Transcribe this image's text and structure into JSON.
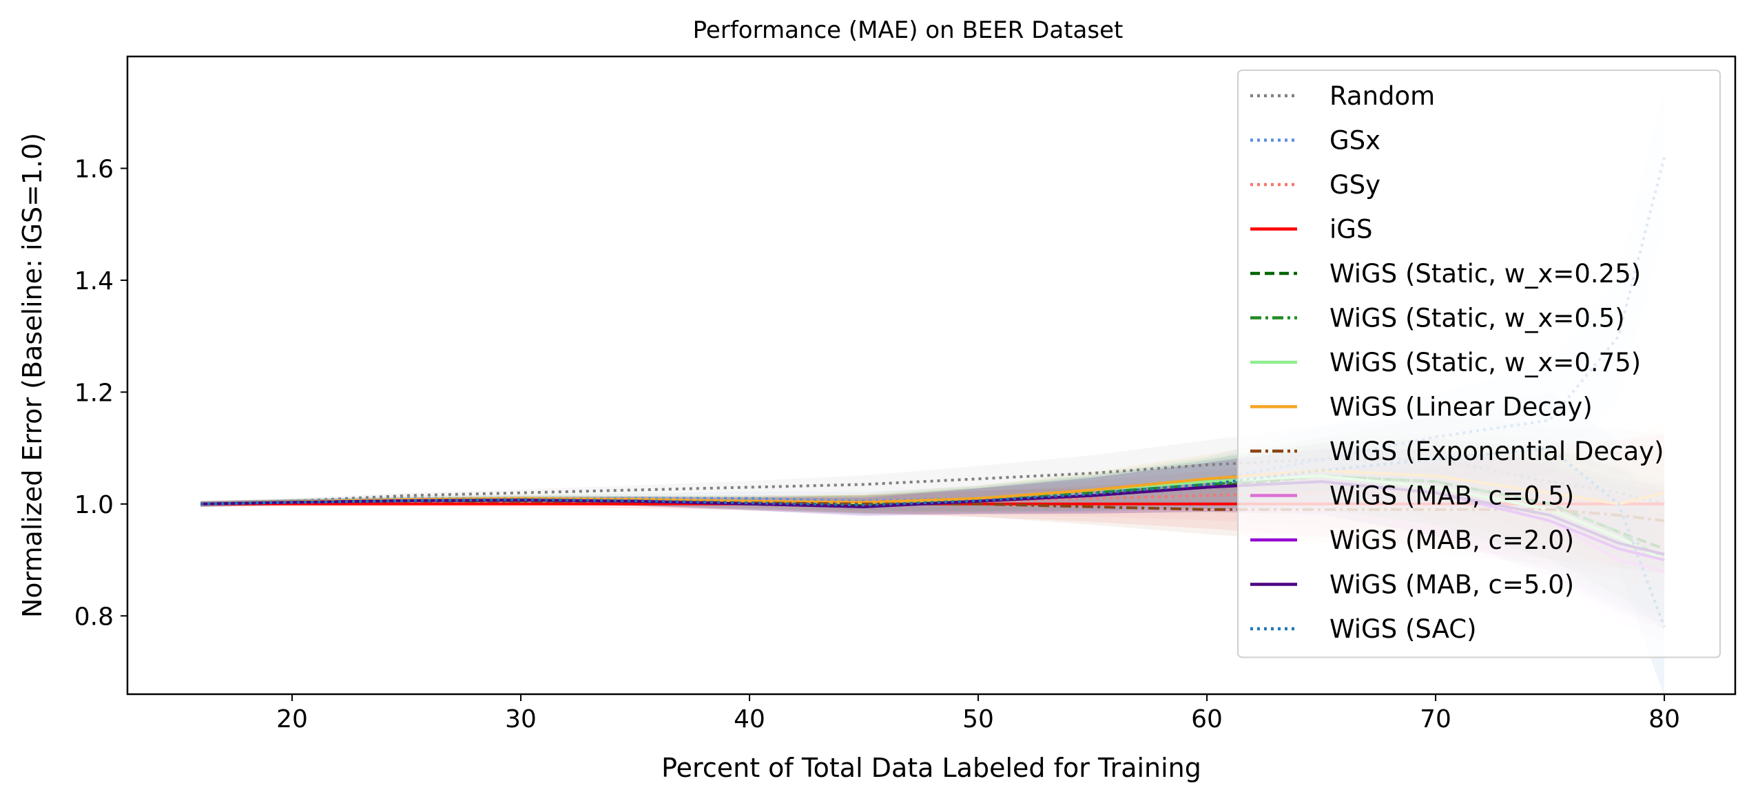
{
  "chart_data": {
    "type": "line",
    "title": "Performance (MAE) on BEER Dataset",
    "xlabel": "Percent of Total Data Labeled for Training",
    "ylabel": "Normalized Error (Baseline: iGS=1.0)",
    "xlim": [
      12.8,
      83.1
    ],
    "ylim": [
      0.66,
      1.8
    ],
    "xticks": [
      "20",
      "30",
      "40",
      "50",
      "60",
      "70",
      "80"
    ],
    "yticks": [
      "0.8",
      "1.0",
      "1.2",
      "1.4",
      "1.6"
    ],
    "grid": false,
    "legend_position": "upper right",
    "x": [
      16,
      20,
      25,
      30,
      35,
      40,
      45,
      50,
      55,
      60,
      65,
      70,
      75,
      78,
      80
    ],
    "series": [
      {
        "name": "Random",
        "color": "#808080",
        "style": "dotted",
        "values": [
          1.0,
          1.005,
          1.015,
          1.02,
          1.025,
          1.03,
          1.035,
          1.045,
          1.055,
          1.07,
          1.08,
          1.08,
          1.04,
          1.02,
          1.0
        ]
      },
      {
        "name": "GSx",
        "color": "#5b8fdc",
        "style": "dotted",
        "values": [
          1.0,
          1.005,
          1.01,
          1.01,
          1.01,
          1.01,
          1.005,
          1.01,
          1.02,
          1.04,
          1.08,
          1.12,
          1.15,
          1.3,
          1.62
        ]
      },
      {
        "name": "GSy",
        "color": "#f4786e",
        "style": "dotted",
        "values": [
          1.0,
          1.003,
          1.005,
          1.005,
          1.005,
          1.005,
          1.0,
          1.005,
          1.01,
          1.015,
          1.02,
          1.02,
          1.01,
          1.0,
          1.0
        ]
      },
      {
        "name": "iGS",
        "color": "#ff0000",
        "style": "solid",
        "values": [
          1.0,
          1.0,
          1.0,
          1.0,
          1.0,
          1.0,
          1.0,
          1.0,
          1.0,
          1.0,
          1.0,
          1.0,
          1.0,
          1.0,
          1.0
        ]
      },
      {
        "name": "WiGS (Static, w_x=0.25)",
        "color": "#006400",
        "style": "dashed",
        "values": [
          1.0,
          1.003,
          1.006,
          1.006,
          1.005,
          1.0,
          0.998,
          1.005,
          1.015,
          1.03,
          1.05,
          1.04,
          1.0,
          0.95,
          0.92
        ]
      },
      {
        "name": "WiGS (Static, w_x=0.5)",
        "color": "#228b22",
        "style": "dashdot",
        "values": [
          1.0,
          1.004,
          1.007,
          1.008,
          1.006,
          1.002,
          1.0,
          1.008,
          1.02,
          1.035,
          1.05,
          1.04,
          1.0,
          0.95,
          0.9
        ]
      },
      {
        "name": "WiGS (Static, w_x=0.75)",
        "color": "#90ee90",
        "style": "solid",
        "values": [
          1.0,
          1.004,
          1.008,
          1.01,
          1.008,
          1.005,
          1.002,
          1.01,
          1.025,
          1.04,
          1.05,
          1.03,
          0.99,
          0.94,
          0.9
        ]
      },
      {
        "name": "WiGS (Linear Decay)",
        "color": "#f5a623",
        "style": "solid",
        "values": [
          1.0,
          1.004,
          1.008,
          1.01,
          1.008,
          1.005,
          1.003,
          1.01,
          1.025,
          1.045,
          1.06,
          1.05,
          1.02,
          1.0,
          1.02
        ]
      },
      {
        "name": "WiGS (Exponential Decay)",
        "color": "#8b4513",
        "style": "dashdot",
        "values": [
          1.0,
          1.003,
          1.005,
          1.005,
          1.004,
          1.002,
          1.0,
          1.0,
          0.995,
          0.99,
          0.99,
          0.99,
          0.99,
          0.98,
          0.97
        ]
      },
      {
        "name": "WiGS (MAB, c=0.5)",
        "color": "#da70d6",
        "style": "solid",
        "values": [
          1.0,
          1.003,
          1.006,
          1.007,
          1.005,
          1.0,
          0.995,
          1.005,
          1.015,
          1.03,
          1.04,
          1.02,
          0.97,
          0.9,
          0.88
        ]
      },
      {
        "name": "WiGS (MAB, c=2.0)",
        "color": "#9400d3",
        "style": "solid",
        "values": [
          1.0,
          1.003,
          1.006,
          1.007,
          1.005,
          1.0,
          0.995,
          1.005,
          1.015,
          1.03,
          1.04,
          1.02,
          0.97,
          0.92,
          0.9
        ]
      },
      {
        "name": "WiGS (MAB, c=5.0)",
        "color": "#4b0082",
        "style": "solid",
        "values": [
          1.0,
          1.003,
          1.006,
          1.007,
          1.005,
          1.0,
          0.995,
          1.005,
          1.015,
          1.03,
          1.04,
          1.02,
          0.98,
          0.93,
          0.91
        ]
      },
      {
        "name": "WiGS (SAC)",
        "color": "#1f77b4",
        "style": "dotted",
        "values": [
          1.0,
          1.003,
          1.006,
          1.008,
          1.006,
          1.002,
          0.998,
          1.006,
          1.018,
          1.035,
          1.06,
          1.08,
          1.1,
          1.0,
          0.78
        ]
      }
    ]
  }
}
